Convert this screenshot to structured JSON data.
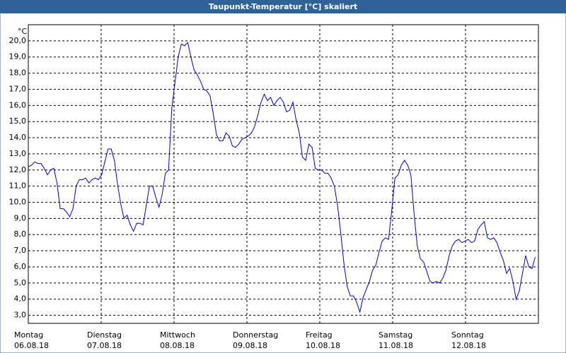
{
  "chart_data": {
    "type": "line",
    "title": "Taupunkt-Temperatur [°C] skaliert",
    "y_unit": "°C",
    "xlim": [
      0,
      168
    ],
    "ylim": [
      2.5,
      21
    ],
    "xticks": [
      {
        "value": 0,
        "label": "Montag",
        "sublabel": "06.08.18"
      },
      {
        "value": 24,
        "label": "Dienstag",
        "sublabel": "07.08.18"
      },
      {
        "value": 48,
        "label": "Mittwoch",
        "sublabel": "08.08.18"
      },
      {
        "value": 72,
        "label": "Donnerstag",
        "sublabel": "09.08.18"
      },
      {
        "value": 96,
        "label": "Freitag",
        "sublabel": "10.08.18"
      },
      {
        "value": 120,
        "label": "Samstag",
        "sublabel": "11.08.18"
      },
      {
        "value": 144,
        "label": "Sonntag",
        "sublabel": "12.08.18"
      }
    ],
    "yticks": [
      {
        "value": 3,
        "label": "3,0"
      },
      {
        "value": 4,
        "label": "4,0"
      },
      {
        "value": 5,
        "label": "5,0"
      },
      {
        "value": 6,
        "label": "6,0"
      },
      {
        "value": 7,
        "label": "7,0"
      },
      {
        "value": 8,
        "label": "8,0"
      },
      {
        "value": 9,
        "label": "9,0"
      },
      {
        "value": 10,
        "label": "10,0"
      },
      {
        "value": 11,
        "label": "11,0"
      },
      {
        "value": 12,
        "label": "12,0"
      },
      {
        "value": 13,
        "label": "13,0"
      },
      {
        "value": 14,
        "label": "14,0"
      },
      {
        "value": 15,
        "label": "15,0"
      },
      {
        "value": 16,
        "label": "16,0"
      },
      {
        "value": 17,
        "label": "17,0"
      },
      {
        "value": 18,
        "label": "18,0"
      },
      {
        "value": 19,
        "label": "19,0"
      },
      {
        "value": 20,
        "label": "20,0"
      }
    ],
    "grid": true,
    "x": [
      0,
      1.05,
      2.1,
      3.15,
      4.2,
      5.25,
      6.3,
      7.35,
      8.4,
      9.45,
      10.5,
      11.55,
      12.6,
      13.65,
      14.7,
      15.75,
      16.8,
      17.85,
      18.9,
      19.95,
      21,
      22.05,
      23.1,
      24.15,
      25.2,
      26.25,
      27.3,
      28.35,
      29.4,
      30.45,
      31.5,
      32.55,
      33.6,
      34.65,
      35.7,
      36.75,
      37.8,
      38.85,
      39.9,
      40.95,
      42,
      43.05,
      44.1,
      45.15,
      46.2,
      47.25,
      48.3,
      49.35,
      50.4,
      51.45,
      52.5,
      53.55,
      54.6,
      55.65,
      56.7,
      57.75,
      58.8,
      59.85,
      60.9,
      61.95,
      63,
      64.05,
      65.1,
      66.15,
      67.2,
      68.25,
      69.3,
      70.35,
      71.4,
      72.45,
      73.5,
      74.55,
      75.6,
      76.65,
      77.7,
      78.75,
      79.8,
      80.85,
      81.9,
      82.95,
      84,
      85.05,
      86.1,
      87.15,
      88.2,
      89.25,
      90.3,
      91.35,
      92.4,
      93.45,
      94.5,
      95.55,
      96.6,
      97.65,
      98.7,
      99.75,
      100.8,
      101.85,
      102.9,
      103.95,
      105,
      106.05,
      107.1,
      108.15,
      109.2,
      110.25,
      111.3,
      112.35,
      113.4,
      114.45,
      115.5,
      116.55,
      117.6,
      118.65,
      119.7,
      120.75,
      121.8,
      122.85,
      123.9,
      124.95,
      126,
      127.05,
      128.1,
      129.15,
      130.2,
      131.25,
      132.3,
      133.35,
      134.4,
      135.45,
      136.5,
      137.55,
      138.6,
      139.65,
      140.7,
      141.75,
      142.8,
      143.85,
      144.9,
      145.95,
      147,
      148.05,
      149.1,
      150.15,
      151.2,
      152.25,
      153.3,
      154.35,
      155.4,
      156.45,
      157.5,
      158.55,
      159.6,
      160.65,
      161.7,
      162.75,
      163.8,
      164.85,
      165.9,
      166.95
    ],
    "series": [
      {
        "color": "#0000c8",
        "values": [
          12.2,
          12.3,
          12.5,
          12.4,
          12.4,
          12.1,
          11.7,
          12.0,
          12.1,
          11.2,
          9.6,
          9.6,
          9.4,
          9.1,
          9.6,
          11.0,
          11.4,
          11.4,
          11.5,
          11.2,
          11.4,
          11.5,
          11.4,
          11.7,
          12.5,
          13.3,
          13.3,
          12.6,
          11.1,
          9.9,
          9.0,
          9.2,
          8.6,
          8.2,
          8.7,
          8.7,
          8.6,
          9.8,
          11.0,
          11.0,
          10.3,
          9.7,
          10.5,
          11.8,
          12.0,
          15.8,
          17.4,
          19.0,
          19.8,
          19.7,
          19.9,
          19.0,
          18.2,
          17.9,
          17.5,
          17.0,
          16.9,
          16.6,
          15.5,
          14.2,
          13.8,
          13.8,
          14.3,
          14.1,
          13.5,
          13.4,
          13.6,
          13.9,
          14.0,
          14.1,
          14.3,
          14.7,
          15.4,
          16.2,
          16.7,
          16.3,
          16.5,
          16.0,
          16.3,
          16.5,
          16.2,
          15.6,
          15.7,
          16.2,
          15.1,
          14.3,
          12.8,
          12.6,
          13.6,
          13.4,
          12.1,
          12.0,
          12.0,
          11.8,
          11.8,
          11.5,
          11.0,
          9.8,
          8.1,
          6.2,
          4.8,
          4.2,
          4.2,
          3.8,
          3.2,
          4.1,
          4.6,
          5.1,
          5.8,
          6.1,
          6.9,
          7.6,
          7.8,
          7.7,
          9.5,
          11.5,
          11.7,
          12.3,
          12.6,
          12.3,
          11.7,
          9.3,
          7.3,
          6.5,
          6.3,
          5.7,
          5.1,
          5.0,
          5.1,
          5.0,
          5.3,
          5.8,
          6.7,
          7.3,
          7.6,
          7.7,
          7.5,
          7.6,
          7.7,
          7.5,
          7.6,
          8.3,
          8.6,
          8.8,
          7.8,
          7.7,
          7.8,
          7.5,
          6.9,
          6.4,
          5.6,
          5.9,
          5.1,
          4.0,
          4.5,
          5.6,
          6.7,
          6.0,
          5.9,
          6.6
        ]
      }
    ]
  }
}
